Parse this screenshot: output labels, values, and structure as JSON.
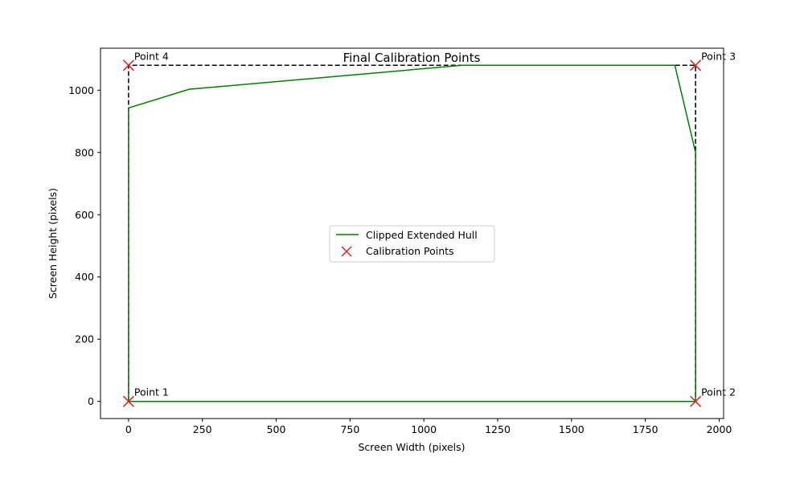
{
  "chart_data": {
    "type": "line",
    "title": "Final Calibration Points",
    "xlabel": "Screen Width (pixels)",
    "ylabel": "Screen Height (pixels)",
    "xlim": [
      -95,
      2015
    ],
    "ylim": [
      -55,
      1135
    ],
    "xticks": [
      0,
      250,
      500,
      750,
      1000,
      1250,
      1500,
      1750,
      2000
    ],
    "yticks": [
      0,
      200,
      400,
      600,
      800,
      1000
    ],
    "grid": false,
    "legend_position": "center",
    "series": [
      {
        "name": "Clipped Extended Hull",
        "kind": "line",
        "color": "#008000",
        "x": [
          0,
          1920,
          1920,
          1850,
          1130,
          205,
          0,
          0
        ],
        "y": [
          0,
          0,
          800,
          1080,
          1080,
          1003,
          943,
          0
        ]
      },
      {
        "name": "Calibration Points",
        "kind": "scatter",
        "marker": "x",
        "color": "#d62728",
        "x": [
          0,
          1920,
          1920,
          0
        ],
        "y": [
          0,
          0,
          1080,
          1080
        ],
        "labels": [
          "Point 1",
          "Point 2",
          "Point 3",
          "Point 4"
        ]
      }
    ],
    "reference_outline": {
      "style": "dashed",
      "color": "#000000",
      "x": [
        0,
        1920,
        1920,
        0,
        0
      ],
      "y": [
        0,
        0,
        1080,
        1080,
        0
      ]
    }
  }
}
